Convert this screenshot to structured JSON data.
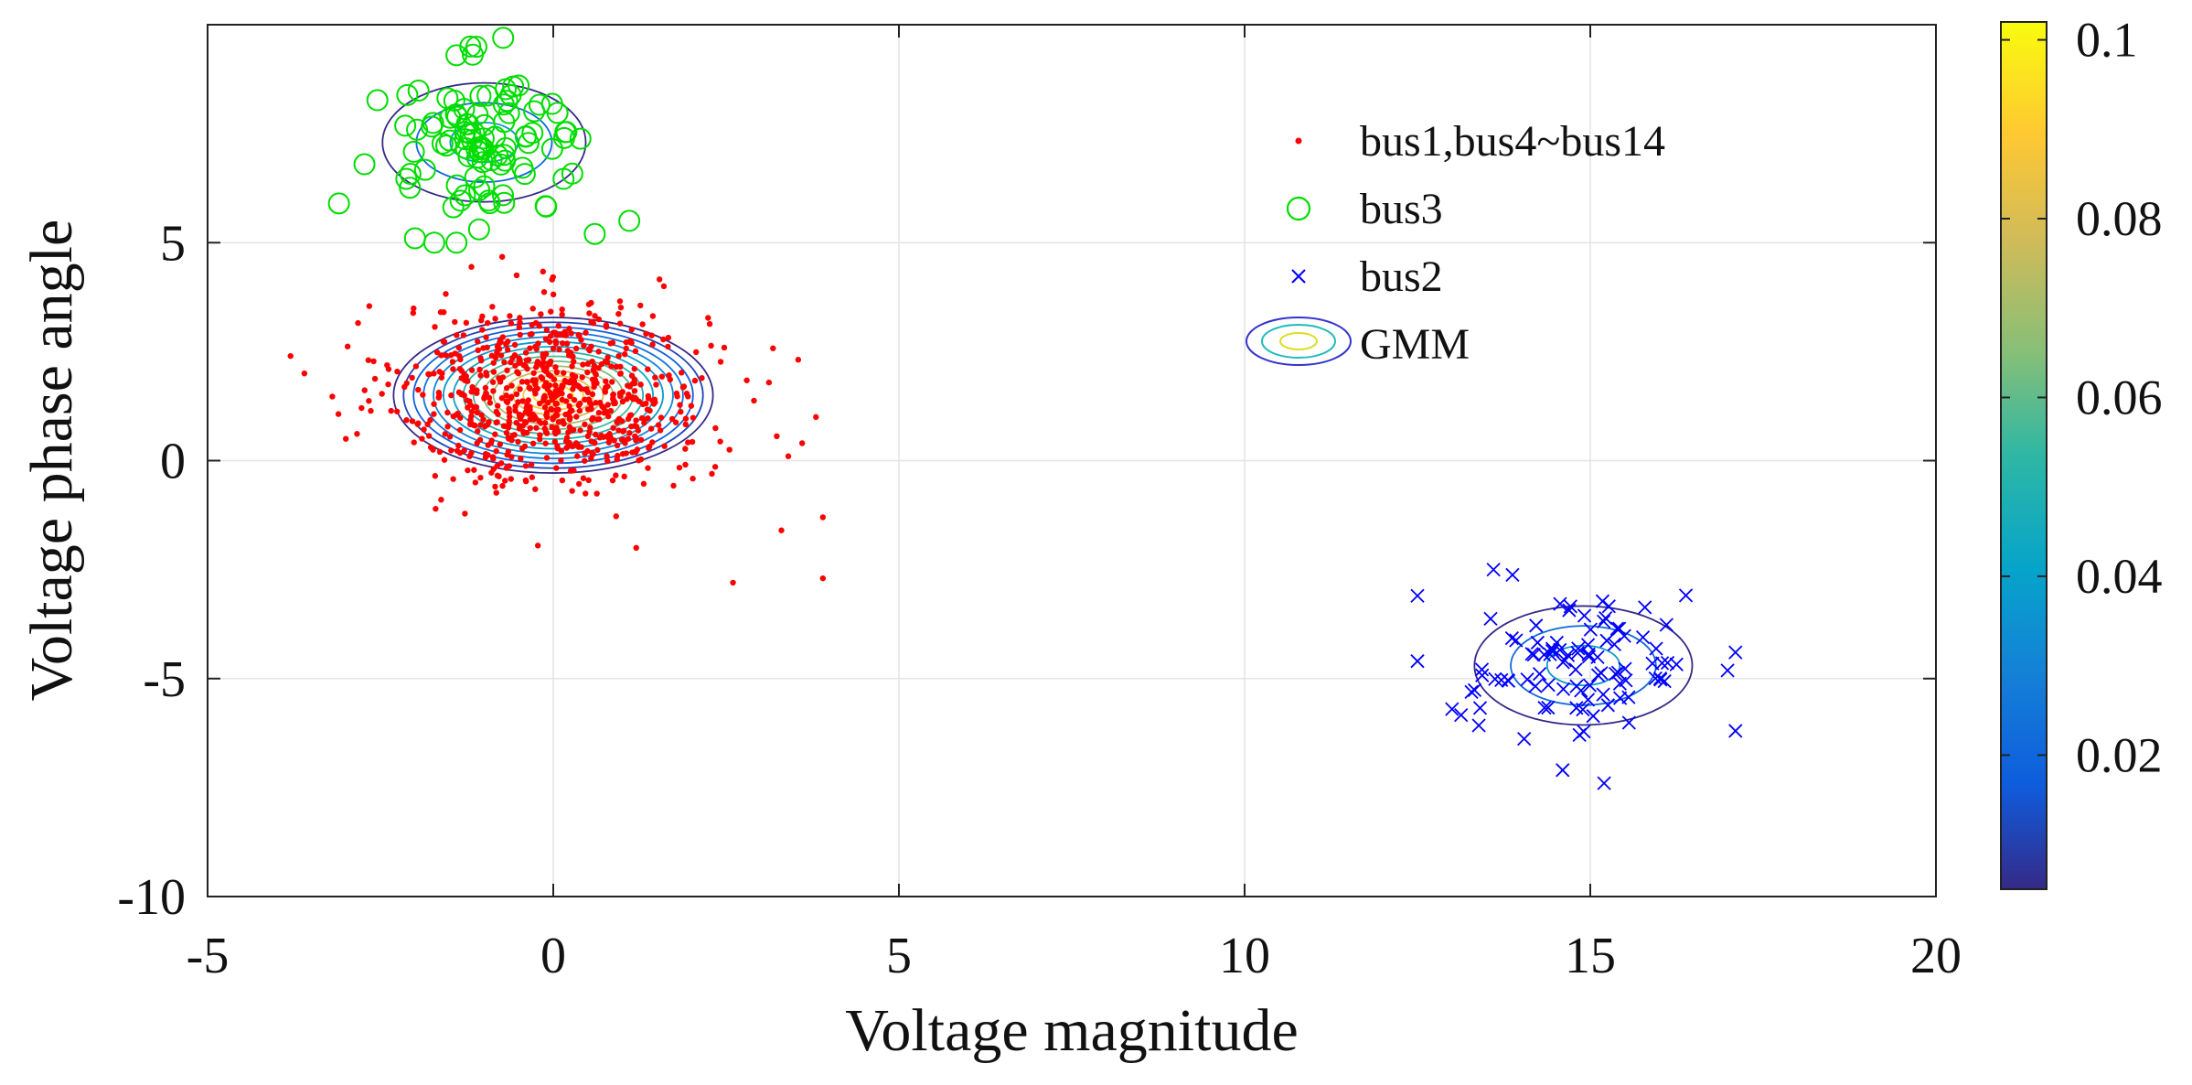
{
  "chart_data": {
    "type": "scatter",
    "title": "",
    "xlabel": "Voltage magnitude",
    "ylabel": "Voltage phase angle",
    "xlim": [
      -5,
      20
    ],
    "ylim": [
      -10,
      10
    ],
    "x_ticks": [
      -5,
      0,
      5,
      10,
      15,
      20
    ],
    "y_ticks": [
      -10,
      -5,
      0,
      5
    ],
    "x_tick_labels": [
      "-5",
      "0",
      "5",
      "10",
      "15",
      "20"
    ],
    "y_tick_labels": [
      "-10",
      "-5",
      "0",
      "5"
    ],
    "grid": true,
    "legend_position": "top-right",
    "series": [
      {
        "name": "bus1,bus4~bus14",
        "marker": "dot",
        "color": "#ff0000",
        "count": 800,
        "mean": [
          0.0,
          1.5
        ],
        "std": [
          1.1,
          1.05
        ],
        "approx_x_range": [
          -3.8,
          4.0
        ],
        "approx_y_range": [
          -2.8,
          4.8
        ],
        "outliers": [
          [
            -3.8,
            2.4
          ],
          [
            -3.6,
            2.0
          ],
          [
            -3.0,
            0.5
          ],
          [
            3.4,
            0.1
          ],
          [
            3.6,
            0.4
          ],
          [
            3.8,
            1.0
          ],
          [
            3.9,
            -1.3
          ],
          [
            3.9,
            -2.7
          ],
          [
            2.6,
            -2.8
          ],
          [
            3.3,
            -1.6
          ],
          [
            1.2,
            -2.0
          ],
          [
            1.6,
            4.0
          ]
        ]
      },
      {
        "name": "bus3",
        "marker": "circle",
        "color": "#00dd00",
        "count": 100,
        "mean": [
          -1.0,
          7.3
        ],
        "std": [
          0.75,
          0.85
        ],
        "approx_x_range": [
          -3.1,
          1.2
        ],
        "approx_y_range": [
          5.0,
          9.8
        ],
        "outliers": [
          [
            -3.1,
            5.9
          ],
          [
            -2.0,
            5.1
          ],
          [
            -1.4,
            5.0
          ],
          [
            0.6,
            5.2
          ],
          [
            1.1,
            5.5
          ],
          [
            -1.4,
            9.3
          ],
          [
            -1.2,
            9.5
          ]
        ]
      },
      {
        "name": "bus2",
        "marker": "x",
        "color": "#0000ff",
        "count": 100,
        "mean": [
          14.9,
          -4.7
        ],
        "std": [
          0.8,
          0.85
        ],
        "approx_x_range": [
          12.5,
          17.1
        ],
        "approx_y_range": [
          -7.4,
          -2.5
        ],
        "outliers": [
          [
            12.5,
            -3.1
          ],
          [
            12.5,
            -4.6
          ],
          [
            13.0,
            -5.7
          ],
          [
            17.1,
            -4.4
          ],
          [
            17.1,
            -6.2
          ],
          [
            15.2,
            -7.4
          ],
          [
            14.6,
            -7.1
          ],
          [
            13.6,
            -2.5
          ]
        ]
      }
    ],
    "gmm": {
      "name": "GMM",
      "components": [
        {
          "mean": [
            0.0,
            1.5
          ],
          "sigma": [
            1.1,
            0.85
          ],
          "levels": 16
        },
        {
          "mean": [
            -1.0,
            7.3
          ],
          "sigma": [
            0.7,
            0.65
          ],
          "levels": 3
        },
        {
          "mean": [
            14.9,
            -4.7
          ],
          "sigma": [
            0.75,
            0.65
          ],
          "levels": 3
        }
      ]
    },
    "colorbar": {
      "min": 0.005,
      "max": 0.102,
      "ticks": [
        0.02,
        0.04,
        0.06,
        0.08,
        0.1
      ],
      "tick_labels": [
        "0.02",
        "0.04",
        "0.06",
        "0.08",
        "0.1"
      ],
      "colormap": "parula"
    }
  }
}
